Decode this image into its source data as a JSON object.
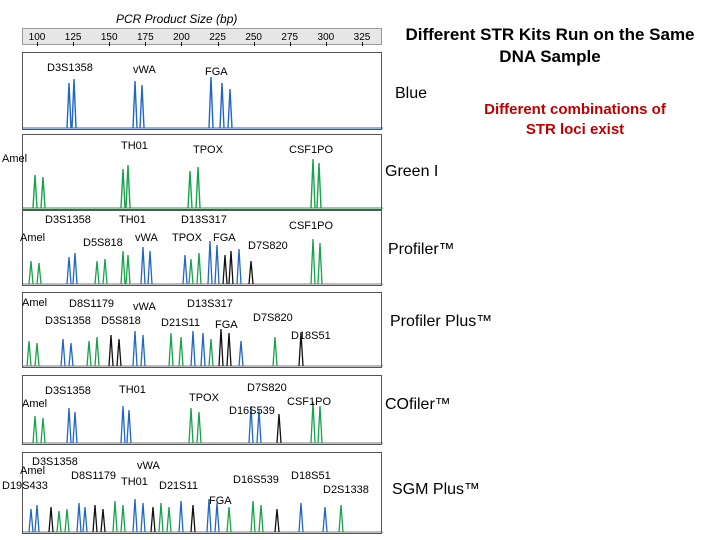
{
  "title": "Different STR Kits Run on the Same DNA Sample",
  "subtitle": "Different combinations of STR loci exist",
  "axis": {
    "label": "PCR Product Size (bp)",
    "ticks": [
      "100",
      "125",
      "150",
      "175",
      "200",
      "225",
      "250",
      "275",
      "300",
      "325"
    ]
  },
  "panels": [
    {
      "kit": "Blue",
      "loci": [
        "D3S1358",
        "vWA",
        "FGA"
      ]
    },
    {
      "kit": "Green I",
      "loci": [
        "Amel",
        "TH01",
        "TPOX",
        "CSF1PO"
      ]
    },
    {
      "kit": "Profiler™",
      "loci": [
        "D3S1358",
        "Amel",
        "TH01",
        "D5S818",
        "vWA",
        "D13S317",
        "TPOX",
        "FGA",
        "CSF1PO",
        "D7S820"
      ]
    },
    {
      "kit": "Profiler Plus™",
      "loci": [
        "Amel",
        "D8S1179",
        "vWA",
        "D13S317",
        "D3S1358",
        "D5S818",
        "D21S11",
        "FGA",
        "D7S820",
        "D18S51"
      ]
    },
    {
      "kit": "COfiler™",
      "loci": [
        "D3S1358",
        "Amel",
        "TH01",
        "TPOX",
        "D7S820",
        "CSF1PO",
        "D16S539"
      ]
    },
    {
      "kit": "SGM Plus™",
      "loci": [
        "D3S1358",
        "vWA",
        "Amel",
        "D8S1179",
        "TH01",
        "D21S11",
        "D16S539",
        "D18S51",
        "D19S433",
        "D2S1338",
        "FGA"
      ]
    }
  ],
  "dye_colors": {
    "blue": "#1f66c7",
    "green": "#16a34a",
    "yellow": "#111111",
    "ladder_gray": "#7a7a7a"
  }
}
